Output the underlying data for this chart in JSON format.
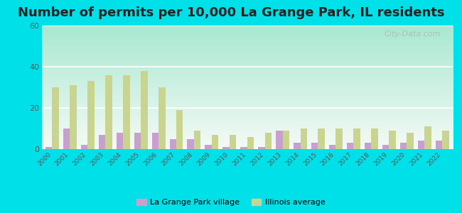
{
  "title": "Number of permits per 10,000 La Grange Park, IL residents",
  "years": [
    2000,
    2001,
    2002,
    2003,
    2004,
    2005,
    2006,
    2007,
    2008,
    2009,
    2010,
    2011,
    2012,
    2013,
    2014,
    2015,
    2016,
    2017,
    2018,
    2019,
    2020,
    2021,
    2022
  ],
  "la_grange": [
    1,
    10,
    2,
    7,
    8,
    8,
    8,
    5,
    5,
    2,
    1,
    1,
    1,
    9,
    3,
    3,
    2,
    3,
    3,
    2,
    3,
    4,
    4
  ],
  "illinois_avg": [
    30,
    31,
    33,
    36,
    36,
    38,
    30,
    19,
    9,
    7,
    7,
    6,
    8,
    9,
    10,
    10,
    10,
    10,
    10,
    9,
    8,
    11,
    9
  ],
  "la_grange_color": "#c8a0d0",
  "illinois_color": "#c8d490",
  "ylim": [
    0,
    60
  ],
  "yticks": [
    0,
    20,
    40,
    60
  ],
  "bg_color_topleft": "#a8e8d0",
  "bg_color_bottomright": "#f4faf4",
  "outer_bg": "#00e0e8",
  "title_fontsize": 13,
  "legend_la_grange": "La Grange Park village",
  "legend_illinois": "Illinois average",
  "watermark": "City-Data.com"
}
